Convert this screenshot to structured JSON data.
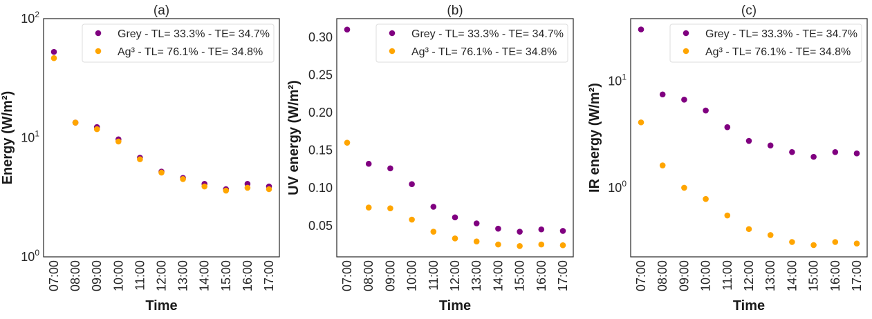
{
  "chart_data": [
    {
      "type": "scatter",
      "title": "(a)",
      "xlabel": "Time",
      "ylabel": "Energy (W/m²)",
      "yscale": "log",
      "ylim": [
        1,
        100
      ],
      "yticks": [
        1,
        10,
        100
      ],
      "ytick_labels": [
        {
          "base": "10",
          "exp": "0"
        },
        {
          "base": "10",
          "exp": "1"
        },
        {
          "base": "10",
          "exp": "2"
        }
      ],
      "categories": [
        "07:00",
        "08:00",
        "09:00",
        "10:00",
        "11:00",
        "12:00",
        "13:00",
        "14:00",
        "15:00",
        "16:00",
        "17:00"
      ],
      "legend_position": "top-right",
      "grid": false,
      "series": [
        {
          "name": "Grey - TL= 33.3% - TE= 34.7%",
          "color": "#800080",
          "values": [
            52.6,
            13.4,
            12.3,
            9.7,
            6.8,
            5.2,
            4.6,
            4.1,
            3.7,
            4.1,
            3.9
          ]
        },
        {
          "name": "Ag³ - TL= 76.1% - TE= 34.8%",
          "color": "#FFA500",
          "values": [
            46.6,
            13.4,
            11.8,
            9.3,
            6.6,
            5.1,
            4.5,
            3.9,
            3.6,
            3.8,
            3.7
          ]
        }
      ]
    },
    {
      "type": "scatter",
      "title": "(b)",
      "xlabel": "Time",
      "ylabel": "UV energy (W/m²)",
      "yscale": "linear",
      "ylim": [
        0.0086,
        0.3245
      ],
      "yticks": [
        0.05,
        0.1,
        0.15,
        0.2,
        0.25,
        0.3
      ],
      "ytick_labels": [
        "0.05",
        "0.10",
        "0.15",
        "0.20",
        "0.25",
        "0.30"
      ],
      "categories": [
        "07:00",
        "08:00",
        "09:00",
        "10:00",
        "11:00",
        "12:00",
        "13:00",
        "14:00",
        "15:00",
        "16:00",
        "17:00"
      ],
      "legend_position": "top-right",
      "grid": false,
      "series": [
        {
          "name": "Grey - TL= 33.3% - TE= 34.7%",
          "color": "#800080",
          "values": [
            0.31,
            0.132,
            0.126,
            0.105,
            0.075,
            0.061,
            0.053,
            0.046,
            0.042,
            0.045,
            0.043
          ]
        },
        {
          "name": "Ag³ - TL= 76.1% - TE= 34.8%",
          "color": "#FFA500",
          "values": [
            0.16,
            0.074,
            0.073,
            0.058,
            0.042,
            0.033,
            0.029,
            0.025,
            0.023,
            0.025,
            0.024
          ]
        }
      ]
    },
    {
      "type": "scatter",
      "title": "(c)",
      "xlabel": "Time",
      "ylabel": "IR energy (W/m²)",
      "yscale": "log",
      "ylim": [
        0.225,
        38.5
      ],
      "yticks": [
        1,
        10
      ],
      "ytick_labels": [
        {
          "base": "10",
          "exp": "0"
        },
        {
          "base": "10",
          "exp": "1"
        }
      ],
      "categories": [
        "07:00",
        "08:00",
        "09:00",
        "10:00",
        "11:00",
        "12:00",
        "13:00",
        "14:00",
        "15:00",
        "16:00",
        "17:00"
      ],
      "legend_position": "top-right",
      "grid": false,
      "series": [
        {
          "name": "Grey - TL= 33.3% - TE= 34.7%",
          "color": "#800080",
          "values": [
            30.5,
            7.5,
            6.7,
            5.3,
            3.7,
            2.75,
            2.49,
            2.16,
            1.95,
            2.16,
            2.1
          ]
        },
        {
          "name": "Ag³ - TL= 76.1% - TE= 34.8%",
          "color": "#FFA500",
          "values": [
            4.1,
            1.62,
            1.0,
            0.785,
            0.55,
            0.41,
            0.36,
            0.31,
            0.29,
            0.31,
            0.3
          ]
        }
      ]
    }
  ]
}
